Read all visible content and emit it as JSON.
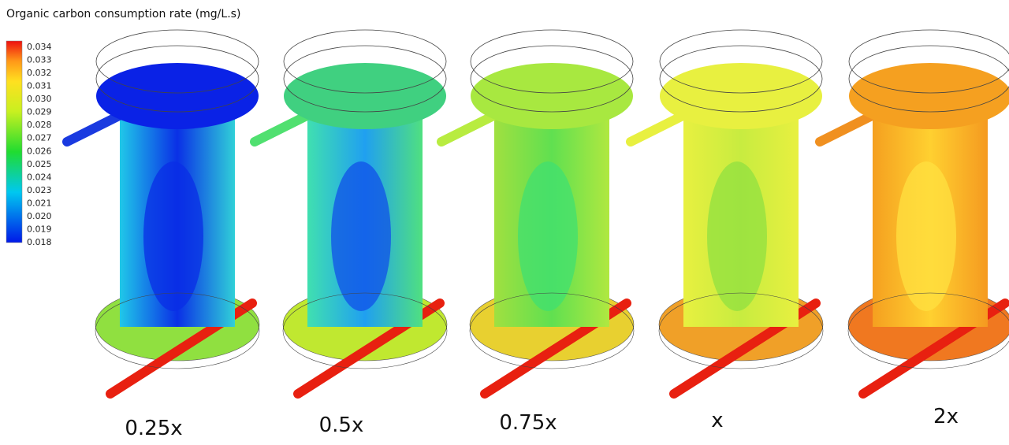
{
  "legend": {
    "title": "Organic carbon consumption  rate (mg/L.s)",
    "ticks": [
      "0.034",
      "0.033",
      "0.032",
      "0.031",
      "0.030",
      "0.029",
      "0.028",
      "0.027",
      "0.026",
      "0.025",
      "0.024",
      "0.023",
      "0.021",
      "0.020",
      "0.019",
      "0.018"
    ]
  },
  "panels": [
    {
      "label": "0.25x"
    },
    {
      "label": "0.5x"
    },
    {
      "label": "0.75x"
    },
    {
      "label": "x"
    },
    {
      "label": "2x"
    }
  ]
}
